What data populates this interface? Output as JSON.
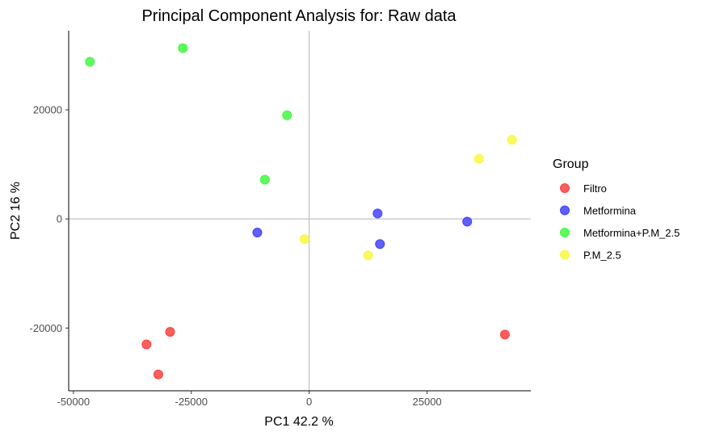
{
  "chart_data": {
    "type": "scatter",
    "title": "Principal Component Analysis for:  Raw data",
    "xlabel": "PC1 42.2 %",
    "ylabel": "PC2 16 %",
    "xlim": [
      -51000,
      47000
    ],
    "ylim": [
      -31500,
      34500
    ],
    "x_ticks": [
      -50000,
      -25000,
      0,
      25000
    ],
    "x_tick_labels": [
      "-50000",
      "-25000",
      "0",
      "25000"
    ],
    "y_ticks": [
      -20000,
      0,
      20000
    ],
    "y_tick_labels": [
      "-20000",
      "0",
      "20000"
    ],
    "reference_lines": {
      "x": 0,
      "y": 0,
      "color": "#b3b3b3"
    },
    "grid": false,
    "legend": {
      "title": "Group",
      "placement": "right"
    },
    "series": [
      {
        "name": "Filtro",
        "color": "#f8433f",
        "points": [
          [
            -34500,
            -23000
          ],
          [
            -29500,
            -20700
          ],
          [
            -32000,
            -28500
          ],
          [
            41500,
            -21200
          ]
        ]
      },
      {
        "name": "Metformina",
        "color": "#4343f8",
        "points": [
          [
            -11000,
            -2500
          ],
          [
            14500,
            1000
          ],
          [
            15000,
            -4600
          ],
          [
            33500,
            -500
          ]
        ]
      },
      {
        "name": "Metformina+P.M_2.5",
        "color": "#43f843",
        "points": [
          [
            -46500,
            28800
          ],
          [
            -26800,
            31300
          ],
          [
            -4700,
            19000
          ],
          [
            -9400,
            7200
          ]
        ]
      },
      {
        "name": "P.M_2.5",
        "color": "#f8f843",
        "points": [
          [
            -1000,
            -3700
          ],
          [
            12500,
            -6700
          ],
          [
            36000,
            11000
          ],
          [
            43000,
            14500
          ]
        ]
      }
    ]
  }
}
